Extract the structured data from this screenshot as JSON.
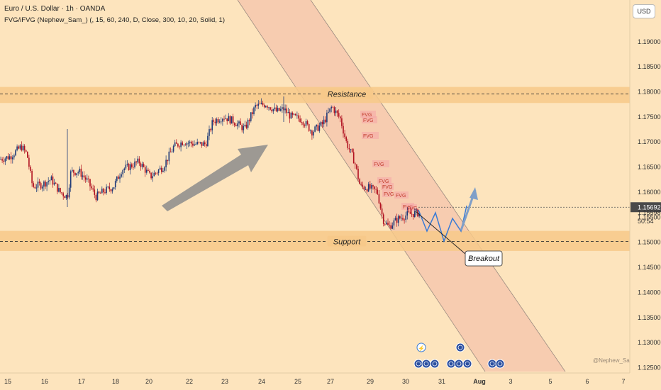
{
  "header": {
    "title": "Euro / U.S. Dollar · 1h · OANDA",
    "indicator": "FVG/iFVG (Nephew_Sam_) (, 15, 60, 240, D, Close, 300, 10, 20, Solid, 1)"
  },
  "currency_button": "USD",
  "watermark": "@Nephew_Sam_",
  "colors": {
    "background": "#fde4bd",
    "zone": "#f7c98a",
    "channel": "#f2b8a6",
    "up_candle": "#1e3a78",
    "down_candle": "#b01020",
    "fvg": "#f5a8a8",
    "projection": "#3a7bd5",
    "arrow": "#8c8c8c"
  },
  "chart_data": {
    "type": "candlestick",
    "symbol": "EURUSD",
    "timeframe": "1h",
    "y_axis": {
      "ticks": [
        "1.19000",
        "1.18500",
        "1.18000",
        "1.17500",
        "1.17000",
        "1.16500",
        "1.16000",
        "1.15500",
        "1.15000",
        "1.14500",
        "1.14000",
        "1.13500",
        "1.13000",
        "1.12500"
      ],
      "range": [
        1.1235,
        1.2015
      ]
    },
    "x_axis": {
      "ticks": [
        "15",
        "16",
        "17",
        "18",
        "20",
        "22",
        "23",
        "24",
        "25",
        "27",
        "29",
        "30",
        "31",
        "Aug",
        "3",
        "5",
        "6",
        "7"
      ]
    },
    "price_labels": [
      {
        "value": "1.15692",
        "style": "current"
      },
      {
        "value": "1.15598",
        "style": "plain"
      },
      {
        "value": "50:54",
        "style": "countdown"
      }
    ],
    "zones": [
      {
        "label": "Resistance",
        "top": 1.1809,
        "bottom": 1.1777,
        "line": 1.1795
      },
      {
        "label": "Support",
        "top": 1.1522,
        "bottom": 1.1482,
        "line": 1.1501
      }
    ],
    "current_price_line": 1.15692,
    "fvg_labels": [
      "FVG",
      "FVG",
      "FVG",
      "FVG",
      "FVG",
      "FVG",
      "FVG",
      "FVG",
      "FVG",
      "FVG"
    ],
    "annotations": {
      "breakout_label": "Breakout"
    },
    "price_path": [
      [
        0,
        1.1665
      ],
      [
        14,
        1.167
      ],
      [
        30,
        1.169
      ],
      [
        38,
        1.1675
      ],
      [
        46,
        1.161
      ],
      [
        60,
        1.1615
      ],
      [
        72,
        1.1625
      ],
      [
        84,
        1.16
      ],
      [
        95,
        1.159
      ],
      [
        100,
        1.164
      ],
      [
        112,
        1.164
      ],
      [
        124,
        1.162
      ],
      [
        135,
        1.159
      ],
      [
        145,
        1.16
      ],
      [
        160,
        1.161
      ],
      [
        172,
        1.1645
      ],
      [
        182,
        1.165
      ],
      [
        196,
        1.166
      ],
      [
        212,
        1.163
      ],
      [
        230,
        1.165
      ],
      [
        245,
        1.169
      ],
      [
        258,
        1.17
      ],
      [
        275,
        1.1695
      ],
      [
        290,
        1.1695
      ],
      [
        300,
        1.174
      ],
      [
        315,
        1.175
      ],
      [
        330,
        1.174
      ],
      [
        345,
        1.1725
      ],
      [
        360,
        1.177
      ],
      [
        375,
        1.1775
      ],
      [
        390,
        1.176
      ],
      [
        400,
        1.1765
      ],
      [
        410,
        1.175
      ],
      [
        425,
        1.1745
      ],
      [
        440,
        1.172
      ],
      [
        455,
        1.1735
      ],
      [
        468,
        1.177
      ],
      [
        480,
        1.1745
      ],
      [
        488,
        1.17
      ],
      [
        500,
        1.166
      ],
      [
        508,
        1.161
      ],
      [
        520,
        1.1608
      ],
      [
        532,
        1.16
      ],
      [
        540,
        1.1545
      ],
      [
        548,
        1.153
      ],
      [
        560,
        1.1545
      ],
      [
        575,
        1.1555
      ],
      [
        590,
        1.1558
      ]
    ]
  }
}
